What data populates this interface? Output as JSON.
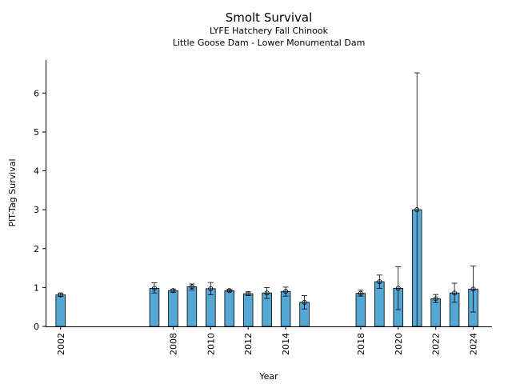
{
  "chart_data": {
    "type": "bar",
    "title": "Smolt Survival",
    "subtitle_lines": [
      "LYFE Hatchery Fall Chinook",
      "Little Goose Dam - Lower Monumental Dam"
    ],
    "xlabel": "Year",
    "ylabel": "PIT-Tag Survival",
    "xlim": [
      2001.2,
      2025.0
    ],
    "ylim": [
      0,
      6.85
    ],
    "x_ticks": [
      2002,
      2008,
      2010,
      2012,
      2014,
      2018,
      2020,
      2022,
      2024
    ],
    "y_ticks": [
      0,
      1,
      2,
      3,
      4,
      5,
      6
    ],
    "bar_color": "#56A8D4",
    "x": [
      2002,
      2007,
      2008,
      2009,
      2010,
      2011,
      2012,
      2013,
      2014,
      2015,
      2018,
      2019,
      2020,
      2021,
      2022,
      2023,
      2024
    ],
    "values": [
      0.81,
      0.98,
      0.92,
      1.02,
      0.97,
      0.92,
      0.84,
      0.86,
      0.9,
      0.62,
      0.85,
      1.15,
      0.98,
      3.0,
      0.71,
      0.86,
      0.96
    ],
    "error_low": [
      0.77,
      0.86,
      0.88,
      0.94,
      0.81,
      0.89,
      0.79,
      0.72,
      0.78,
      0.45,
      0.78,
      0.98,
      0.43,
      0.0,
      0.61,
      0.62,
      0.37
    ],
    "error_high": [
      0.86,
      1.12,
      0.96,
      1.09,
      1.13,
      0.95,
      0.89,
      1.0,
      1.01,
      0.79,
      0.93,
      1.32,
      1.53,
      6.52,
      0.82,
      1.11,
      1.55
    ],
    "grid": false,
    "legend": "none"
  }
}
